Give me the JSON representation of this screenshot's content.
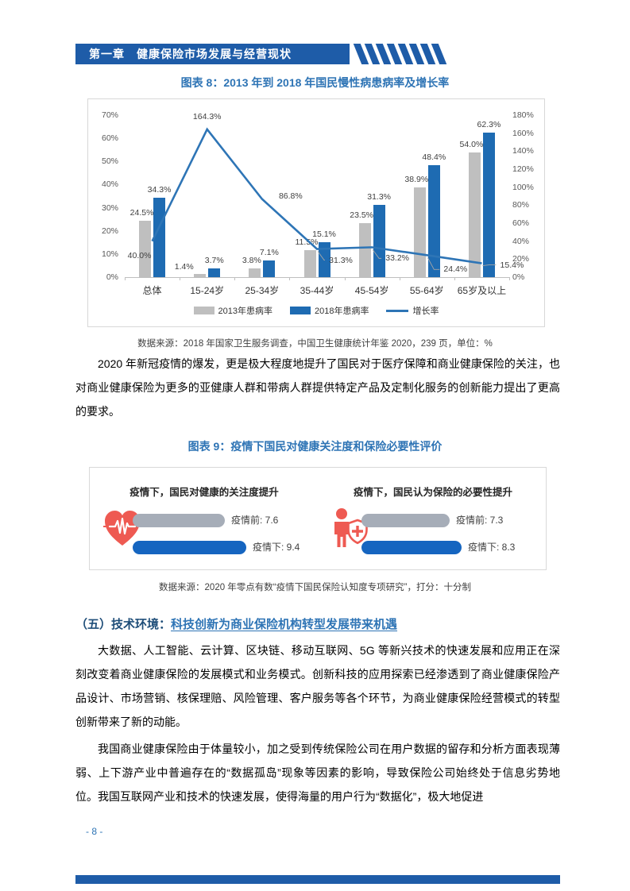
{
  "header": {
    "chapter": "第一章　健康保险市场发展与经营现状"
  },
  "figure8": {
    "title": "图表 8：2013 年到 2018 年国民慢性病患病率及增长率",
    "source": "数据来源：2018 年国家卫生服务调查，中国卫生健康统计年鉴 2020，239 页，单位：%"
  },
  "chart_data": {
    "type": "bar",
    "title": "2013年到2018年国民慢性病患病率及增长率",
    "categories": [
      "总体",
      "15-24岁",
      "25-34岁",
      "35-44岁",
      "45-54岁",
      "55-64岁",
      "65岁及以上"
    ],
    "series": [
      {
        "name": "2013年患病率",
        "kind": "bar",
        "axis": "left",
        "color": "#BFBFBF",
        "values": [
          24.5,
          1.4,
          3.8,
          11.5,
          23.5,
          38.9,
          54.0
        ]
      },
      {
        "name": "2018年患病率",
        "kind": "bar",
        "axis": "left",
        "color": "#1E6BB2",
        "values": [
          34.3,
          3.7,
          7.1,
          15.1,
          31.3,
          48.4,
          62.3
        ]
      },
      {
        "name": "增长率",
        "kind": "line",
        "axis": "right",
        "color": "#2E75B6",
        "values": [
          40.0,
          164.3,
          86.8,
          31.3,
          33.2,
          24.4,
          15.4
        ]
      }
    ],
    "left_axis": {
      "min": 0,
      "max": 70,
      "step": 10,
      "tick_labels": [
        "0%",
        "10%",
        "20%",
        "30%",
        "40%",
        "50%",
        "60%",
        "70%"
      ]
    },
    "right_axis": {
      "min": 0,
      "max": 180,
      "step": 20,
      "tick_labels": [
        "0%",
        "20%",
        "40%",
        "60%",
        "80%",
        "100%",
        "120%",
        "140%",
        "160%",
        "180%"
      ]
    },
    "grid": false,
    "legend_position": "bottom"
  },
  "paragraphs": {
    "p1": "2020 年新冠疫情的爆发，更是极大程度地提升了国民对于医疗保障和商业健康保险的关注，也对商业健康保险为更多的亚健康人群和带病人群提供特定产品及定制化服务的创新能力提出了更高的要求。",
    "p2": "大数据、人工智能、云计算、区块链、移动互联网、5G 等新兴技术的快速发展和应用正在深刻改变着商业健康保险的发展模式和业务模式。创新科技的应用探索已经渗透到了商业健康保险产品设计、市场营销、核保理赔、风险管理、客户服务等各个环节，为商业健康保险经营模式的转型创新带来了新的动能。",
    "p3": "我国商业健康保险由于体量较小，加之受到传统保险公司在用户数据的留存和分析方面表现薄弱、上下游产业中普遍存在的“数据孤岛”现象等因素的影响，导致保险公司始终处于信息劣势地位。我国互联网产业和技术的快速发展，使得海量的用户行为“数据化”，极大地促进"
  },
  "figure9": {
    "title": "图表 9：疫情下国民对健康关注度和保险必要性评价",
    "score_scale_max": 10,
    "panels": [
      {
        "icon": "heart-ecg",
        "heading": "疫情下，国民对健康的关注度提升",
        "before": 7.6,
        "after": 9.4,
        "before_label": "疫情前: 7.6",
        "after_label": "疫情下: 9.4"
      },
      {
        "icon": "person-shield",
        "heading": "疫情下，国民认为保险的必要性提升",
        "before": 7.3,
        "after": 8.3,
        "before_label": "疫情前: 7.3",
        "after_label": "疫情下: 8.3"
      }
    ],
    "source": "数据来源：2020 年零点有数“疫情下国民保险认知度专项研究”，打分：十分制"
  },
  "section5": {
    "prefix": "（五）技术环境：",
    "title": "科技创新为商业保险机构转型发展带来机遇"
  },
  "footer": {
    "page_number": "- 8 -"
  },
  "colors": {
    "header_bar": "#1E5CA8",
    "figure_title": "#2E74B5",
    "bar_2013": "#BFBFBF",
    "bar_2018": "#1E6BB2",
    "growth_line": "#2E75B6",
    "pill_gray": "#A6ADB8",
    "pill_blue": "#1565C0",
    "icon_red": "#EE5A52"
  }
}
